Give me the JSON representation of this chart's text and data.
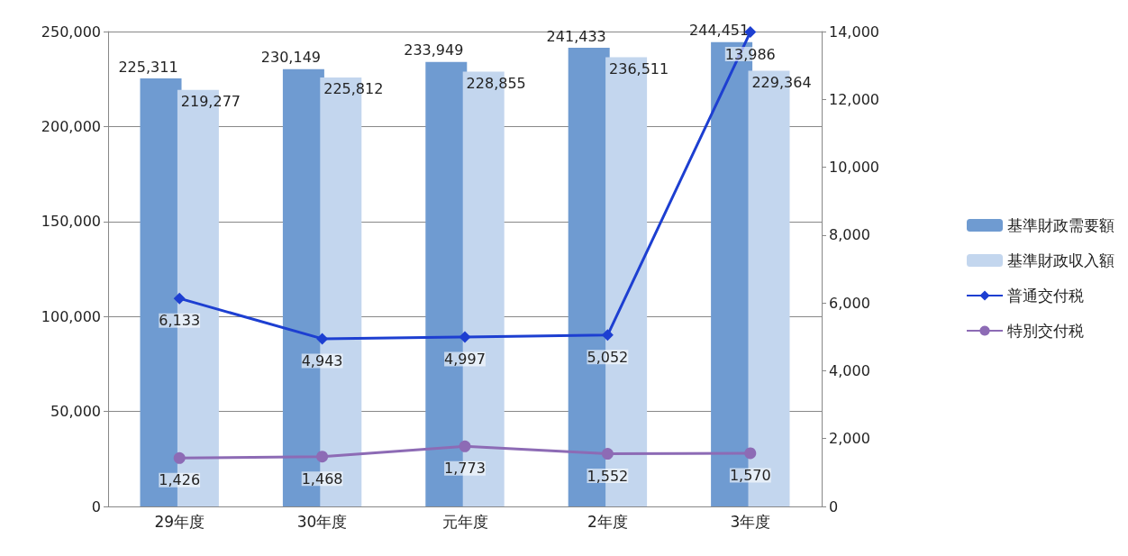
{
  "chart_data": {
    "type": "bar",
    "categories": [
      "29年度",
      "30年度",
      "元年度",
      "2年度",
      "3年度"
    ],
    "series": [
      {
        "name": "基準財政需要額",
        "color": "#6f9bd1",
        "values": [
          225311,
          230149,
          233949,
          241433,
          244451
        ],
        "value_labels": [
          "225,311",
          "230,149",
          "233,949",
          "241,433",
          "244,451"
        ]
      },
      {
        "name": "基準財政収入額",
        "color": "#c3d6ee",
        "values": [
          219277,
          225812,
          228855,
          236511,
          229364
        ],
        "value_labels": [
          "219,277",
          "225,812",
          "228,855",
          "236,511",
          "229,364"
        ]
      },
      {
        "name": "普通交付税",
        "type": "line",
        "axis": "y2",
        "color": "#1d3fd1",
        "marker": "diamond",
        "values": [
          6133,
          4943,
          4997,
          5052,
          13986
        ],
        "value_labels": [
          "6,133",
          "4,943",
          "4,997",
          "5,052",
          "13,986"
        ]
      },
      {
        "name": "特別交付税",
        "type": "line",
        "axis": "y2",
        "color": "#8d6bb5",
        "marker": "circle",
        "values": [
          1426,
          1468,
          1773,
          1552,
          1570
        ],
        "value_labels": [
          "1,426",
          "1,468",
          "1,773",
          "1,552",
          "1,570"
        ]
      }
    ],
    "ylim": [
      0,
      250000
    ],
    "yticks": [
      0,
      {
        "value": 50000,
        "label": "50,000"
      },
      {
        "value": 100000,
        "label": "100,000"
      },
      {
        "value": 150000,
        "label": "150,000"
      },
      {
        "value": 200000,
        "label": "200,000"
      },
      {
        "value": 250000,
        "label": "250,000"
      }
    ],
    "y2lim": [
      0,
      14000
    ],
    "y2ticks": [
      0,
      {
        "value": 2000,
        "label": "2,000"
      },
      {
        "value": 4000,
        "label": "4,000"
      },
      {
        "value": 6000,
        "label": "6,000"
      },
      {
        "value": 8000,
        "label": "8,000"
      },
      {
        "value": 10000,
        "label": "10,000"
      },
      {
        "value": 12000,
        "label": "12,000"
      },
      {
        "value": 14000,
        "label": "14,000"
      }
    ],
    "grid": "y",
    "legend": "right"
  }
}
